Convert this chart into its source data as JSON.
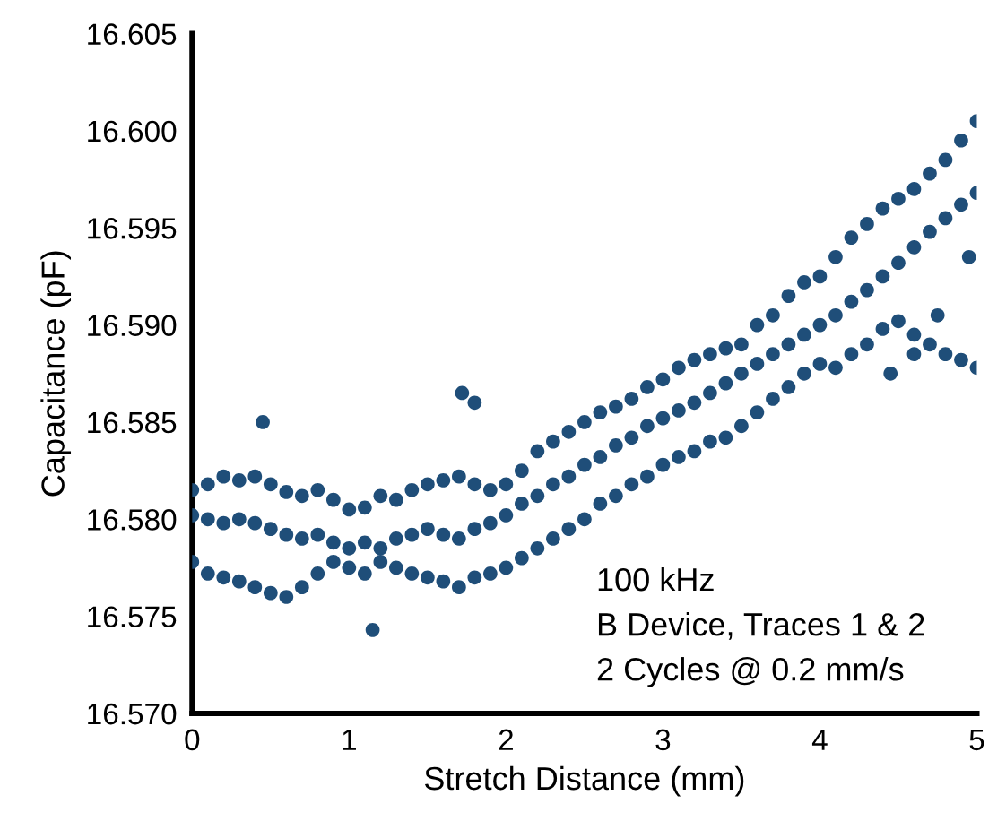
{
  "chart_data": {
    "type": "scatter",
    "xlabel": "Stretch Distance (mm)",
    "ylabel": "Capacitance (pF)",
    "annotations": [
      "100 kHz",
      "B Device, Traces 1 & 2",
      "2 Cycles @ 0.2 mm/s"
    ],
    "xlim": [
      0,
      5
    ],
    "xticks": [
      0,
      1,
      2,
      3,
      4,
      5
    ],
    "ylim": [
      16.57,
      16.605
    ],
    "yticks": [
      {
        "value": 16.57,
        "label": "16.570"
      },
      {
        "value": 16.575,
        "label": "16.575"
      },
      {
        "value": 16.58,
        "label": "16.580"
      },
      {
        "value": 16.585,
        "label": "16.585"
      },
      {
        "value": 16.59,
        "label": "16.590"
      },
      {
        "value": 16.595,
        "label": "16.595"
      },
      {
        "value": 16.6,
        "label": "16.600"
      },
      {
        "value": 16.605,
        "label": "16.605"
      }
    ],
    "grid": false,
    "marker": "circle",
    "series": [
      {
        "color": "#1f4e79",
        "x": [
          0,
          0.1,
          0.2,
          0.3,
          0.4,
          0.5,
          0.6,
          0.7,
          0.8,
          0.9,
          1.0,
          1.1,
          1.2,
          1.3,
          1.4,
          1.5,
          1.6,
          1.7,
          1.8,
          1.9,
          2.0,
          2.1,
          2.2,
          2.3,
          2.4,
          2.5,
          2.6,
          2.7,
          2.8,
          2.9,
          3.0,
          3.1,
          3.2,
          3.3,
          3.4,
          3.5,
          3.6,
          3.7,
          3.8,
          3.9,
          4.0,
          4.1,
          4.2,
          4.3,
          4.4,
          4.5,
          4.6,
          4.7,
          4.8,
          4.9,
          5.0,
          0,
          0.1,
          0.2,
          0.3,
          0.4,
          0.5,
          0.6,
          0.7,
          0.8,
          0.9,
          1.0,
          1.1,
          1.2,
          1.3,
          1.4,
          1.5,
          1.6,
          1.7,
          1.8,
          1.9,
          2.0,
          2.1,
          2.2,
          2.3,
          2.4,
          2.5,
          2.6,
          2.7,
          2.8,
          2.9,
          3.0,
          3.1,
          3.2,
          3.3,
          3.4,
          3.5,
          3.6,
          3.7,
          3.8,
          3.9,
          4.0,
          4.1,
          4.2,
          4.3,
          4.4,
          4.5,
          4.6,
          4.7,
          4.8,
          4.9,
          5.0,
          0,
          0.1,
          0.2,
          0.3,
          0.4,
          0.5,
          0.6,
          0.7,
          0.8,
          0.9,
          1.0,
          1.1,
          1.2,
          1.3,
          1.4,
          1.5,
          1.6,
          1.7,
          1.8,
          1.9,
          2.0,
          2.1,
          2.2,
          2.3,
          2.4,
          2.5,
          2.6,
          2.7,
          2.8,
          2.9,
          3.0,
          3.1,
          3.2,
          3.3,
          3.4,
          3.5,
          3.6,
          3.7,
          3.8,
          3.9,
          4.0,
          4.1,
          4.2,
          4.3,
          4.4,
          4.5,
          4.6,
          4.7,
          4.8,
          4.9,
          5.0,
          0.45,
          1.15,
          1.72,
          1.8,
          4.45,
          4.6,
          4.75,
          4.95
        ],
        "values": [
          16.5815,
          16.5818,
          16.5822,
          16.582,
          16.5822,
          16.5818,
          16.5814,
          16.5812,
          16.5815,
          16.581,
          16.5805,
          16.5806,
          16.5812,
          16.581,
          16.5815,
          16.5818,
          16.582,
          16.5822,
          16.5818,
          16.5815,
          16.5818,
          16.5825,
          16.5835,
          16.584,
          16.5845,
          16.585,
          16.5855,
          16.5858,
          16.5862,
          16.5868,
          16.5872,
          16.5878,
          16.5882,
          16.5885,
          16.5888,
          16.589,
          16.59,
          16.5905,
          16.5915,
          16.5922,
          16.5925,
          16.5935,
          16.5945,
          16.5952,
          16.596,
          16.5965,
          16.597,
          16.5978,
          16.5985,
          16.5995,
          16.6005,
          16.5802,
          16.58,
          16.5798,
          16.58,
          16.5798,
          16.5795,
          16.5792,
          16.579,
          16.5792,
          16.5788,
          16.5785,
          16.5788,
          16.5785,
          16.579,
          16.5792,
          16.5795,
          16.5792,
          16.579,
          16.5795,
          16.5798,
          16.5802,
          16.5808,
          16.5812,
          16.5818,
          16.5822,
          16.5828,
          16.5832,
          16.5838,
          16.5842,
          16.5848,
          16.5852,
          16.5856,
          16.586,
          16.5865,
          16.587,
          16.5875,
          16.588,
          16.5885,
          16.589,
          16.5895,
          16.59,
          16.5905,
          16.5912,
          16.5918,
          16.5925,
          16.5932,
          16.594,
          16.5948,
          16.5955,
          16.5962,
          16.5968,
          16.5778,
          16.5772,
          16.577,
          16.5768,
          16.5765,
          16.5762,
          16.576,
          16.5765,
          16.5772,
          16.5778,
          16.5775,
          16.5772,
          16.5778,
          16.5775,
          16.5772,
          16.577,
          16.5768,
          16.5765,
          16.577,
          16.5772,
          16.5775,
          16.578,
          16.5785,
          16.579,
          16.5795,
          16.58,
          16.5808,
          16.5812,
          16.5818,
          16.5822,
          16.5828,
          16.5832,
          16.5835,
          16.584,
          16.5842,
          16.5848,
          16.5855,
          16.5862,
          16.5868,
          16.5875,
          16.588,
          16.5878,
          16.5885,
          16.589,
          16.5898,
          16.5902,
          16.5895,
          16.589,
          16.5885,
          16.5882,
          16.5878,
          16.585,
          16.5743,
          16.5865,
          16.586,
          16.5875,
          16.5885,
          16.5905,
          16.5935
        ]
      }
    ]
  }
}
